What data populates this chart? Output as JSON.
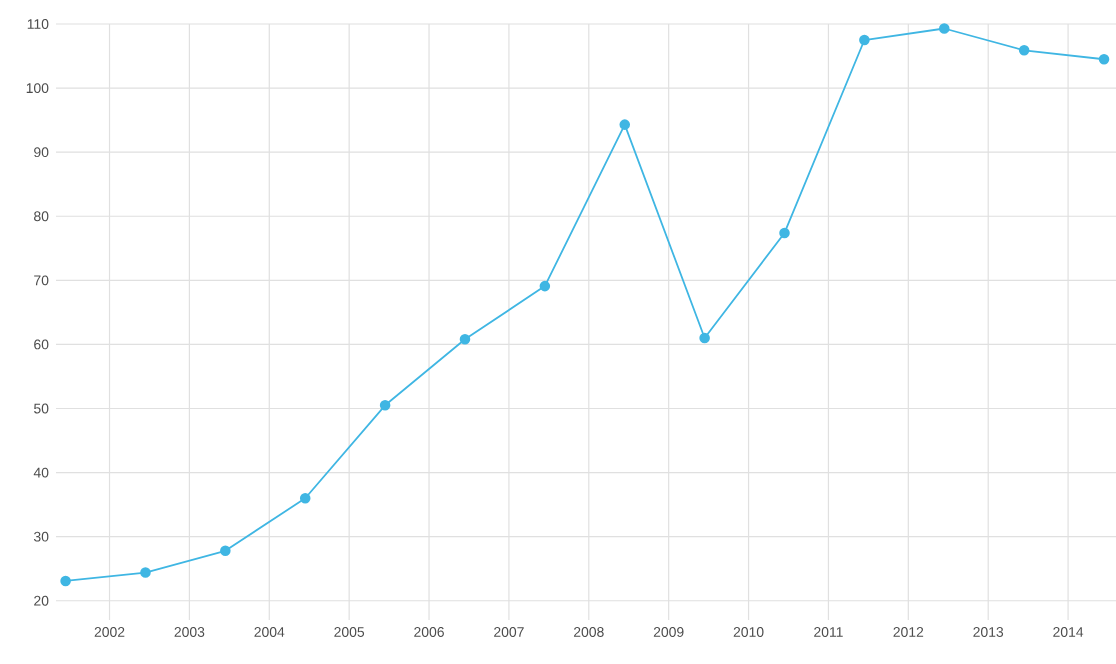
{
  "chart_data": {
    "type": "line",
    "x": [
      2001.45,
      2002.45,
      2003.45,
      2004.45,
      2005.45,
      2006.45,
      2007.45,
      2008.45,
      2009.45,
      2010.45,
      2011.45,
      2012.45,
      2013.45,
      2014.45
    ],
    "series": [
      {
        "color": "#3fb6e3",
        "values": [
          23.1,
          24.4,
          27.8,
          36,
          50.5,
          60.8,
          69.1,
          94.3,
          61,
          77.4,
          107.5,
          109.3,
          105.9,
          104.5
        ]
      }
    ],
    "xlim": [
      2001.33,
      2014.6
    ],
    "xticks": [
      2002,
      2003,
      2004,
      2005,
      2006,
      2007,
      2008,
      2009,
      2010,
      2011,
      2012,
      2013,
      2014
    ],
    "ylim": [
      17,
      110
    ],
    "yticks": [
      20,
      30,
      40,
      50,
      60,
      70,
      80,
      90,
      100,
      110
    ],
    "grid": true,
    "marker": "circle",
    "line_style": "solid"
  }
}
